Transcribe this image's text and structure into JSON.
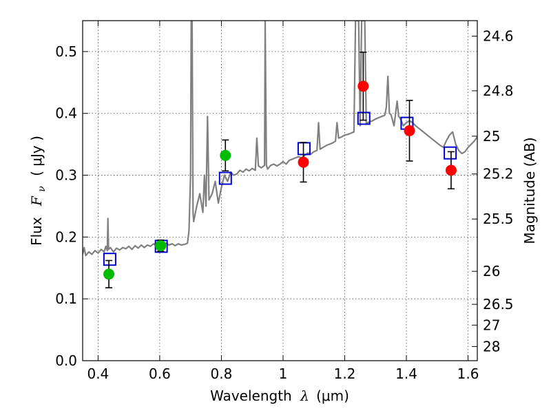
{
  "chart_data": {
    "type": "scatter",
    "xlabel_prefix": "Wavelength",
    "xlabel_symbol": "λ",
    "xlabel_unit": "(μm)",
    "ylabel_prefix": "Flux",
    "ylabel_symbol": "F",
    "ylabel_sub": "ν",
    "ylabel_unit": "( μJy )",
    "y2label": "Magnitude (AB)",
    "xlim": [
      0.35,
      1.63
    ],
    "ylim": [
      0.0,
      0.55
    ],
    "grid": true,
    "x_ticks": [
      0.4,
      0.6,
      0.8,
      1.0,
      1.2,
      1.4,
      1.6
    ],
    "x_tick_labels": [
      "0.4",
      "0.6",
      "0.8",
      "1",
      "1.2",
      "1.4",
      "1.6"
    ],
    "y_ticks": [
      0.0,
      0.1,
      0.2,
      0.3,
      0.4,
      0.5
    ],
    "y_tick_labels": [
      "0.0",
      "0.1",
      "0.2",
      "0.3",
      "0.4",
      "0.5"
    ],
    "y2_ticks": [
      {
        "label": "24.6",
        "mag": 24.6
      },
      {
        "label": "24.8",
        "mag": 24.8
      },
      {
        "label": "25",
        "mag": 25.0
      },
      {
        "label": "25.2",
        "mag": 25.2
      },
      {
        "label": "25.5",
        "mag": 25.5
      },
      {
        "label": "26",
        "mag": 26.0
      },
      {
        "label": "26.5",
        "mag": 26.5
      },
      {
        "label": "27",
        "mag": 27.0
      },
      {
        "label": "28",
        "mag": 28.0
      }
    ],
    "model_spectrum": {
      "color": "#808080",
      "points": [
        [
          0.35,
          0.172
        ],
        [
          0.355,
          0.183
        ],
        [
          0.36,
          0.17
        ],
        [
          0.37,
          0.176
        ],
        [
          0.38,
          0.172
        ],
        [
          0.39,
          0.178
        ],
        [
          0.4,
          0.174
        ],
        [
          0.41,
          0.18
        ],
        [
          0.42,
          0.176
        ],
        [
          0.425,
          0.185
        ],
        [
          0.43,
          0.178
        ],
        [
          0.432,
          0.23
        ],
        [
          0.434,
          0.18
        ],
        [
          0.44,
          0.183
        ],
        [
          0.45,
          0.176
        ],
        [
          0.46,
          0.182
        ],
        [
          0.47,
          0.179
        ],
        [
          0.48,
          0.183
        ],
        [
          0.49,
          0.181
        ],
        [
          0.5,
          0.185
        ],
        [
          0.51,
          0.18
        ],
        [
          0.52,
          0.186
        ],
        [
          0.53,
          0.182
        ],
        [
          0.54,
          0.187
        ],
        [
          0.55,
          0.183
        ],
        [
          0.56,
          0.187
        ],
        [
          0.57,
          0.185
        ],
        [
          0.58,
          0.189
        ],
        [
          0.59,
          0.186
        ],
        [
          0.6,
          0.19
        ],
        [
          0.61,
          0.188
        ],
        [
          0.62,
          0.19
        ],
        [
          0.63,
          0.187
        ],
        [
          0.64,
          0.189
        ],
        [
          0.65,
          0.186
        ],
        [
          0.66,
          0.189
        ],
        [
          0.67,
          0.187
        ],
        [
          0.68,
          0.188
        ],
        [
          0.69,
          0.19
        ],
        [
          0.695,
          0.21
        ],
        [
          0.7,
          0.3
        ],
        [
          0.702,
          0.55
        ],
        [
          0.705,
          0.55
        ],
        [
          0.708,
          0.24
        ],
        [
          0.71,
          0.225
        ],
        [
          0.72,
          0.25
        ],
        [
          0.73,
          0.27
        ],
        [
          0.74,
          0.24
        ],
        [
          0.745,
          0.3
        ],
        [
          0.75,
          0.25
        ],
        [
          0.755,
          0.395
        ],
        [
          0.76,
          0.26
        ],
        [
          0.77,
          0.27
        ],
        [
          0.78,
          0.29
        ],
        [
          0.79,
          0.255
        ],
        [
          0.8,
          0.28
        ],
        [
          0.81,
          0.3
        ],
        [
          0.82,
          0.29
        ],
        [
          0.83,
          0.305
        ],
        [
          0.84,
          0.3
        ],
        [
          0.85,
          0.302
        ],
        [
          0.86,
          0.308
        ],
        [
          0.87,
          0.305
        ],
        [
          0.88,
          0.31
        ],
        [
          0.89,
          0.307
        ],
        [
          0.9,
          0.311
        ],
        [
          0.91,
          0.308
        ],
        [
          0.915,
          0.36
        ],
        [
          0.92,
          0.315
        ],
        [
          0.93,
          0.312
        ],
        [
          0.94,
          0.316
        ],
        [
          0.942,
          0.55
        ],
        [
          0.946,
          0.316
        ],
        [
          0.95,
          0.31
        ],
        [
          0.96,
          0.316
        ],
        [
          0.97,
          0.318
        ],
        [
          0.98,
          0.315
        ],
        [
          0.99,
          0.318
        ],
        [
          1.0,
          0.322
        ],
        [
          1.01,
          0.318
        ],
        [
          1.02,
          0.324
        ],
        [
          1.03,
          0.326
        ],
        [
          1.04,
          0.328
        ],
        [
          1.05,
          0.33
        ],
        [
          1.06,
          0.328
        ],
        [
          1.07,
          0.332
        ],
        [
          1.08,
          0.336
        ],
        [
          1.09,
          0.334
        ],
        [
          1.1,
          0.338
        ],
        [
          1.11,
          0.34
        ],
        [
          1.115,
          0.385
        ],
        [
          1.12,
          0.342
        ],
        [
          1.13,
          0.345
        ],
        [
          1.14,
          0.348
        ],
        [
          1.15,
          0.35
        ],
        [
          1.16,
          0.352
        ],
        [
          1.17,
          0.355
        ],
        [
          1.175,
          0.385
        ],
        [
          1.18,
          0.36
        ],
        [
          1.19,
          0.362
        ],
        [
          1.2,
          0.365
        ],
        [
          1.21,
          0.366
        ],
        [
          1.22,
          0.368
        ],
        [
          1.23,
          0.37
        ],
        [
          1.235,
          0.55
        ],
        [
          1.245,
          0.55
        ],
        [
          1.25,
          0.38
        ],
        [
          1.255,
          0.55
        ],
        [
          1.265,
          0.55
        ],
        [
          1.27,
          0.384
        ],
        [
          1.28,
          0.386
        ],
        [
          1.29,
          0.388
        ],
        [
          1.3,
          0.391
        ],
        [
          1.31,
          0.393
        ],
        [
          1.32,
          0.395
        ],
        [
          1.33,
          0.397
        ],
        [
          1.335,
          0.41
        ],
        [
          1.34,
          0.46
        ],
        [
          1.345,
          0.4
        ],
        [
          1.35,
          0.398
        ],
        [
          1.36,
          0.38
        ],
        [
          1.37,
          0.42
        ],
        [
          1.375,
          0.395
        ],
        [
          1.38,
          0.392
        ],
        [
          1.39,
          0.38
        ],
        [
          1.4,
          0.385
        ],
        [
          1.41,
          0.388
        ],
        [
          1.42,
          0.385
        ],
        [
          1.43,
          0.38
        ],
        [
          1.44,
          0.376
        ],
        [
          1.45,
          0.372
        ],
        [
          1.46,
          0.368
        ],
        [
          1.47,
          0.364
        ],
        [
          1.48,
          0.36
        ],
        [
          1.49,
          0.356
        ],
        [
          1.5,
          0.352
        ],
        [
          1.51,
          0.348
        ],
        [
          1.52,
          0.345
        ],
        [
          1.53,
          0.356
        ],
        [
          1.54,
          0.365
        ],
        [
          1.55,
          0.37
        ],
        [
          1.56,
          0.35
        ],
        [
          1.57,
          0.34
        ],
        [
          1.58,
          0.335
        ],
        [
          1.59,
          0.338
        ],
        [
          1.6,
          0.345
        ],
        [
          1.61,
          0.35
        ],
        [
          1.62,
          0.355
        ],
        [
          1.63,
          0.362
        ]
      ]
    },
    "observed_green": {
      "color": "#00bb00",
      "points": [
        {
          "x": 0.435,
          "y": 0.14,
          "err": 0.022
        },
        {
          "x": 0.603,
          "y": 0.186,
          "err": 0.009
        },
        {
          "x": 0.813,
          "y": 0.332,
          "err": 0.025
        }
      ]
    },
    "observed_red": {
      "color": "#ff0000",
      "points": [
        {
          "x": 1.066,
          "y": 0.321,
          "err": 0.032
        },
        {
          "x": 1.26,
          "y": 0.444,
          "err": 0.055
        },
        {
          "x": 1.41,
          "y": 0.372,
          "err": 0.049
        },
        {
          "x": 1.545,
          "y": 0.308,
          "err": 0.03
        }
      ]
    },
    "model_photometry": {
      "color": "#0000cc",
      "points": [
        {
          "x": 0.438,
          "y": 0.164
        },
        {
          "x": 0.605,
          "y": 0.185
        },
        {
          "x": 0.813,
          "y": 0.295
        },
        {
          "x": 1.068,
          "y": 0.343
        },
        {
          "x": 1.262,
          "y": 0.392
        },
        {
          "x": 1.402,
          "y": 0.384
        },
        {
          "x": 1.542,
          "y": 0.336
        }
      ]
    }
  }
}
